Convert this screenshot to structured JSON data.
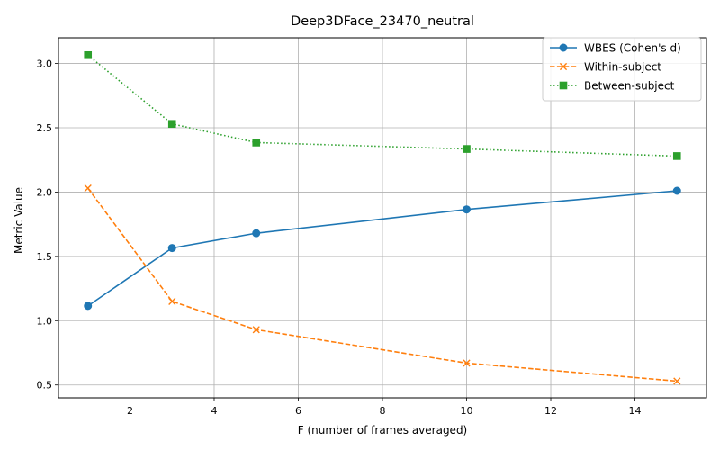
{
  "chart_data": {
    "type": "line",
    "title": "Deep3DFace_23470_neutral",
    "xlabel": "F (number of frames averaged)",
    "ylabel": "Metric Value",
    "x": [
      1,
      3,
      5,
      10,
      15
    ],
    "xlim": [
      0.3,
      15.7
    ],
    "ylim": [
      0.4,
      3.2
    ],
    "xticks": [
      2,
      4,
      6,
      8,
      10,
      12,
      14
    ],
    "yticks": [
      0.5,
      1.0,
      1.5,
      2.0,
      2.5,
      3.0
    ],
    "xtick_labels": [
      "2",
      "4",
      "6",
      "8",
      "10",
      "12",
      "14"
    ],
    "ytick_labels": [
      "0.5",
      "1.0",
      "1.5",
      "2.0",
      "2.5",
      "3.0"
    ],
    "grid": true,
    "legend_position": "top-right",
    "series": [
      {
        "name": "WBES (Cohen's d)",
        "values": [
          1.115,
          1.565,
          1.68,
          1.865,
          2.01
        ],
        "color": "#1f77b4",
        "linestyle": "solid",
        "marker": "circle"
      },
      {
        "name": "Within-subject",
        "values": [
          2.03,
          1.15,
          0.93,
          0.67,
          0.53
        ],
        "color": "#ff7f0e",
        "linestyle": "dashed",
        "marker": "x"
      },
      {
        "name": "Between-subject",
        "values": [
          3.065,
          2.53,
          2.385,
          2.335,
          2.28
        ],
        "color": "#2ca02c",
        "linestyle": "dotted",
        "marker": "square"
      }
    ]
  }
}
